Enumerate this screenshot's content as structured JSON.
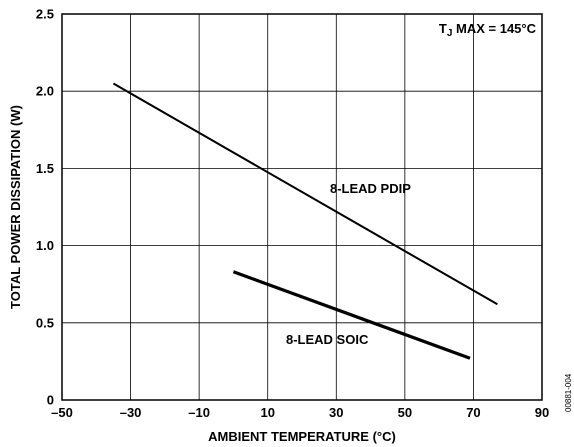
{
  "chart_data": {
    "type": "line",
    "xlabel": "AMBIENT TEMPERATURE (°C)",
    "ylabel": "TOTAL POWER DISSIPATION (W)",
    "xlim": [
      -50,
      90
    ],
    "ylim": [
      0,
      2.5
    ],
    "x_ticks": [
      "–50",
      "–30",
      "–10",
      "10",
      "30",
      "50",
      "70",
      "90"
    ],
    "y_ticks": [
      "0",
      "0.5",
      "1.0",
      "1.5",
      "2.0",
      "2.5"
    ],
    "grid": true,
    "series": [
      {
        "name": "8-LEAD PDIP",
        "x": [
          -35,
          77
        ],
        "y": [
          2.05,
          0.62
        ],
        "stroke_width": 2
      },
      {
        "name": "8-LEAD SOIC",
        "x": [
          0,
          69
        ],
        "y": [
          0.83,
          0.27
        ],
        "stroke_width": 3.2
      }
    ],
    "annotation": {
      "prefix": "T",
      "subscript": "J",
      "suffix": " MAX = 145°C"
    },
    "figure_id": "00881-004"
  }
}
